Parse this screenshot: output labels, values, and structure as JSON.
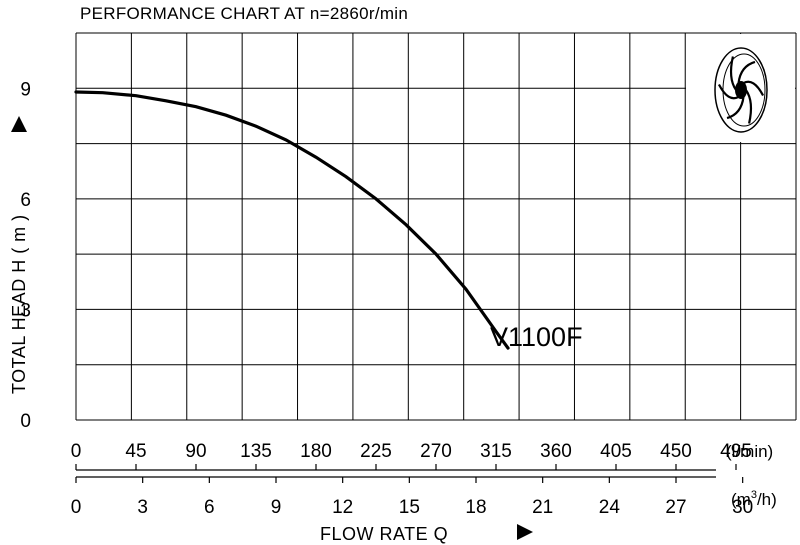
{
  "chart_data": {
    "type": "line",
    "title": "PERFORMANCE  CHART  AT  n=2860r/min",
    "ylabel": "TOTAL HEAD  H ( m )",
    "xlabel": "FLOW  RATE  Q",
    "ylim": [
      0,
      10.5
    ],
    "yticks": [
      "0",
      "3",
      "6",
      "9"
    ],
    "x_axis_lmin": {
      "unit": "(l/min)",
      "xlim": [
        0,
        540
      ],
      "ticks": [
        "0",
        "45",
        "90",
        "135",
        "180",
        "225",
        "270",
        "315",
        "360",
        "405",
        "450",
        "495"
      ]
    },
    "x_axis_m3h": {
      "unit_base": "(m",
      "unit_sup": "3",
      "unit_tail": "/h)",
      "xlim": [
        0,
        32.4
      ],
      "ticks": [
        "0",
        "3",
        "6",
        "9",
        "12",
        "15",
        "18",
        "21",
        "24",
        "27",
        "30"
      ]
    },
    "grid": true,
    "series": [
      {
        "name": "V1100F",
        "x_lmin": [
          0,
          20,
          45,
          67.5,
          90,
          112.5,
          135,
          157.5,
          180,
          202.5,
          225,
          247.5,
          270,
          292.5,
          315,
          324
        ],
        "y": [
          8.9,
          8.88,
          8.8,
          8.66,
          8.5,
          8.27,
          7.97,
          7.6,
          7.13,
          6.6,
          6.0,
          5.3,
          4.5,
          3.55,
          2.4,
          1.95
        ]
      }
    ]
  }
}
